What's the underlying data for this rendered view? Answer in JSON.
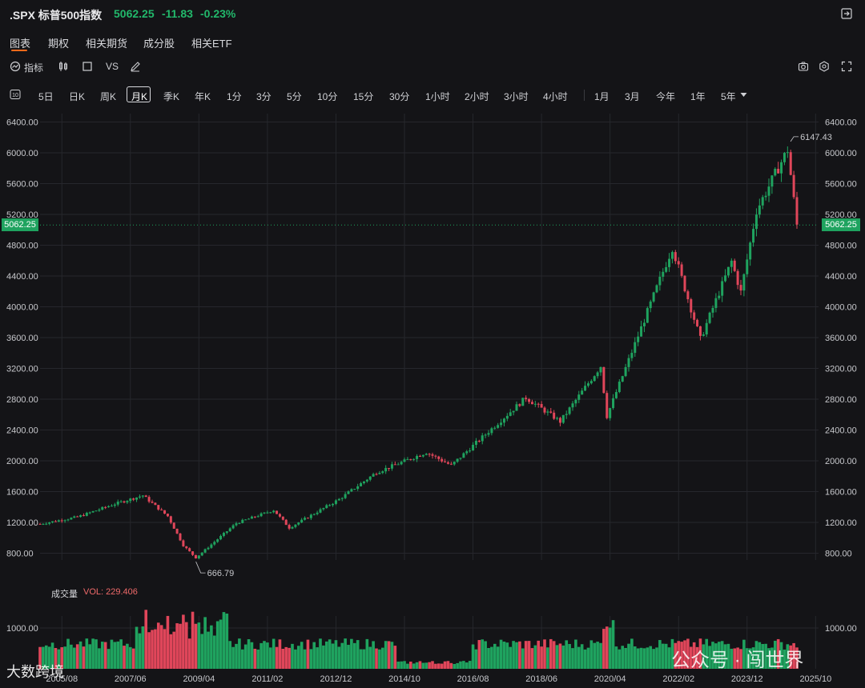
{
  "header": {
    "symbol_title": ".SPX 标普500指数",
    "price": "5062.25",
    "change": "-11.83",
    "change_pct": "-0.23%",
    "quote_color": "#22b86b"
  },
  "tabs": [
    {
      "label": "图表",
      "active": true
    },
    {
      "label": "期权"
    },
    {
      "label": "相关期货"
    },
    {
      "label": "成分股"
    },
    {
      "label": "相关ETF"
    }
  ],
  "toolbar": {
    "indicator_label": "指标",
    "compare_label": "VS",
    "icons": [
      "indicator-icon",
      "candlestick-icon",
      "square-icon",
      "pencil-icon",
      "camera-icon",
      "settings-icon",
      "fullscreen-icon"
    ]
  },
  "periods": [
    "5日",
    "日K",
    "周K",
    "月K",
    "季K",
    "年K",
    "1分",
    "3分",
    "5分",
    "10分",
    "15分",
    "30分",
    "1小时",
    "2小时",
    "3小时",
    "4小时",
    "1月",
    "3月",
    "今年",
    "1年",
    "5年"
  ],
  "period_active": "月K",
  "chart_data": {
    "type": "candlestick",
    "y_ticks": [
      "6400.00",
      "6000.00",
      "5600.00",
      "5200.00",
      "4800.00",
      "4400.00",
      "4000.00",
      "3600.00",
      "3200.00",
      "2800.00",
      "2400.00",
      "2000.00",
      "1600.00",
      "1200.00",
      "800.00"
    ],
    "x_ticks": [
      "2005/08",
      "2007/06",
      "2009/04",
      "2011/02",
      "2012/12",
      "2014/10",
      "2016/08",
      "2018/06",
      "2020/04",
      "2022/02",
      "2023/12",
      "2025/10"
    ],
    "current_price_tag": "5062.25",
    "high_label": "6147.43",
    "low_label": "666.79",
    "series_close": [
      {
        "x": "2005/01",
        "y": 1180
      },
      {
        "x": "2006/01",
        "y": 1270
      },
      {
        "x": "2007/01",
        "y": 1440
      },
      {
        "x": "2007/10",
        "y": 1550
      },
      {
        "x": "2008/06",
        "y": 1280
      },
      {
        "x": "2008/11",
        "y": 900
      },
      {
        "x": "2009/03",
        "y": 740
      },
      {
        "x": "2010/04",
        "y": 1190
      },
      {
        "x": "2011/04",
        "y": 1360
      },
      {
        "x": "2011/09",
        "y": 1130
      },
      {
        "x": "2013/01",
        "y": 1500
      },
      {
        "x": "2014/01",
        "y": 1850
      },
      {
        "x": "2015/05",
        "y": 2110
      },
      {
        "x": "2016/01",
        "y": 1940
      },
      {
        "x": "2018/01",
        "y": 2820
      },
      {
        "x": "2018/12",
        "y": 2510
      },
      {
        "x": "2020/01",
        "y": 3230
      },
      {
        "x": "2020/03",
        "y": 2580
      },
      {
        "x": "2021/12",
        "y": 4770
      },
      {
        "x": "2022/09",
        "y": 3580
      },
      {
        "x": "2023/07",
        "y": 4590
      },
      {
        "x": "2023/10",
        "y": 4190
      },
      {
        "x": "2024/03",
        "y": 5250
      },
      {
        "x": "2025/01",
        "y": 6040
      },
      {
        "x": "2025/04",
        "y": 5062
      }
    ],
    "volume": {
      "label": "成交量",
      "value_label": "VOL: 229.406",
      "y_ticks": [
        "1000.00"
      ]
    },
    "up_color": "#1fa35f",
    "down_color": "#e0465a"
  },
  "watermarks": {
    "left": "大数跨境",
    "right": "公众号 · 闯世界"
  }
}
